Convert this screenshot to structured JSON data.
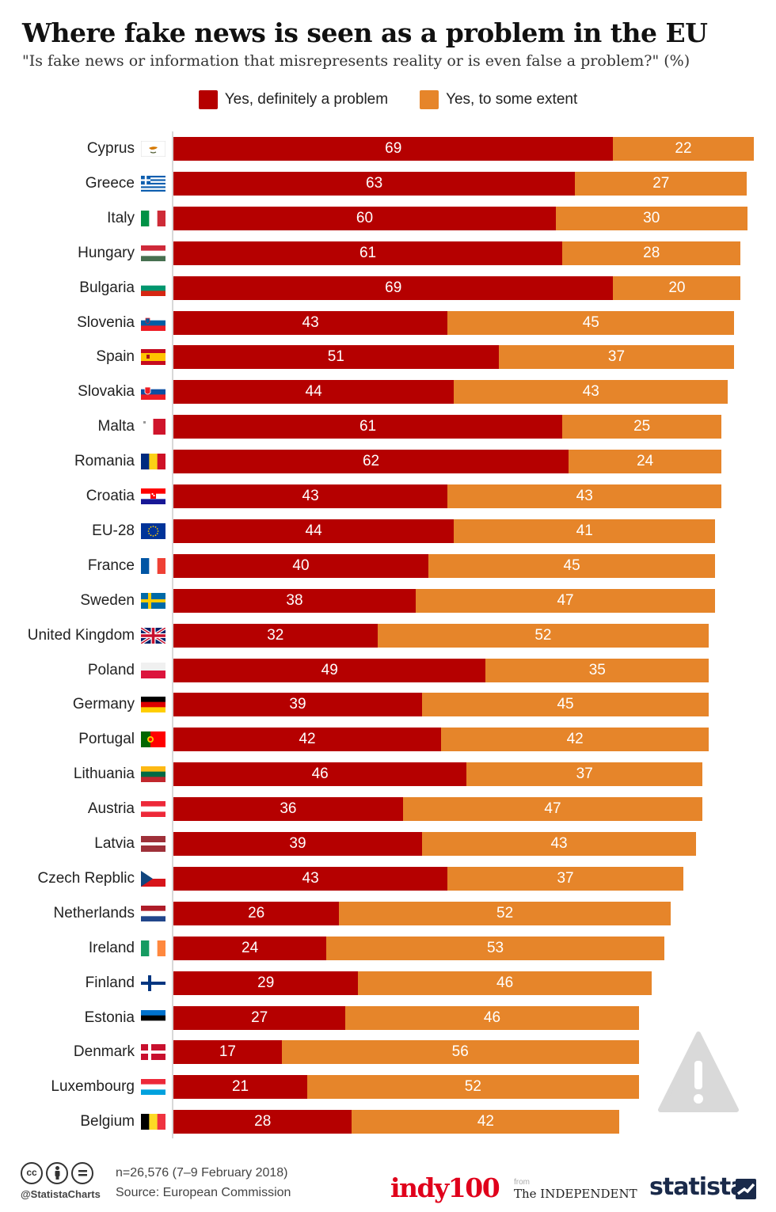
{
  "title": "Where fake news is seen as a problem in the EU",
  "subtitle": "\"Is fake news or information that misrepresents reality or is even false a problem?\" (%)",
  "colors": {
    "definitely": "#b50000",
    "some_extent": "#e6852a"
  },
  "legend": [
    {
      "label": "Yes, definitely a problem",
      "color": "#b50000"
    },
    {
      "label": "Yes, to some extent",
      "color": "#e6852a"
    }
  ],
  "chart_data": {
    "type": "bar",
    "orientation": "horizontal",
    "stacked": true,
    "categories": [
      "Cyprus",
      "Greece",
      "Italy",
      "Hungary",
      "Bulgaria",
      "Slovenia",
      "Spain",
      "Slovakia",
      "Malta",
      "Romania",
      "Croatia",
      "EU-28",
      "France",
      "Sweden",
      "United Kingdom",
      "Poland",
      "Germany",
      "Portugal",
      "Lithuania",
      "Austria",
      "Latvia",
      "Czech Repblic",
      "Netherlands",
      "Ireland",
      "Finland",
      "Estonia",
      "Denmark",
      "Luxembourg",
      "Belgium"
    ],
    "series": [
      {
        "name": "Yes, definitely a problem",
        "values": [
          69,
          63,
          60,
          61,
          69,
          43,
          51,
          44,
          61,
          62,
          43,
          44,
          40,
          38,
          32,
          49,
          39,
          42,
          46,
          36,
          39,
          43,
          26,
          24,
          29,
          27,
          17,
          21,
          28
        ]
      },
      {
        "name": "Yes, to some extent",
        "values": [
          22,
          27,
          30,
          28,
          20,
          45,
          37,
          43,
          25,
          24,
          43,
          41,
          45,
          47,
          52,
          35,
          45,
          42,
          37,
          47,
          43,
          37,
          52,
          53,
          46,
          46,
          56,
          52,
          42
        ]
      }
    ],
    "xlim": [
      0,
      91
    ],
    "grid": false,
    "legend_position": "top-center"
  },
  "flags": [
    "cyprus-flag",
    "greece-flag",
    "italy-flag",
    "hungary-flag",
    "bulgaria-flag",
    "slovenia-flag",
    "spain-flag",
    "slovakia-flag",
    "malta-flag",
    "romania-flag",
    "croatia-flag",
    "eu-flag",
    "france-flag",
    "sweden-flag",
    "uk-flag",
    "poland-flag",
    "germany-flag",
    "portugal-flag",
    "lithuania-flag",
    "austria-flag",
    "latvia-flag",
    "czech-flag",
    "netherlands-flag",
    "ireland-flag",
    "finland-flag",
    "estonia-flag",
    "denmark-flag",
    "luxembourg-flag",
    "belgium-flag"
  ],
  "footer": {
    "license_icons": [
      "creative-commons-icon",
      "attribution-icon",
      "no-derivatives-icon"
    ],
    "cc_text": "cc",
    "handle": "@StatistaCharts",
    "note": "n=26,576 (7–9 February 2018)",
    "source": "Source: European Commission",
    "logo_indy": "indy100",
    "logo_from": "from",
    "logo_independent": "The INDEPENDENT",
    "logo_statista": "statista"
  }
}
